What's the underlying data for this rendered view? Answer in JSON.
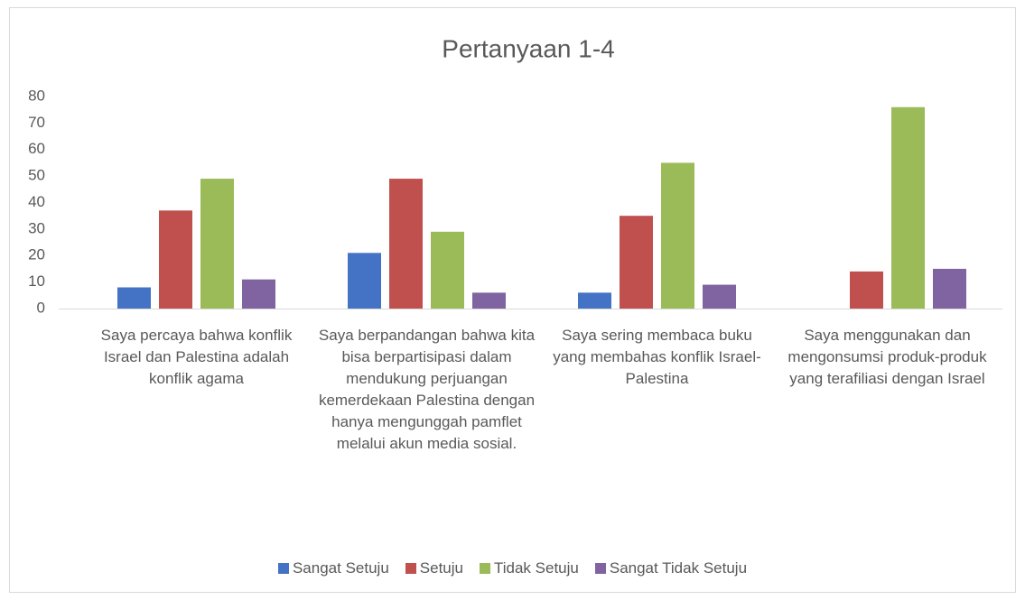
{
  "chart_data": {
    "type": "bar",
    "title": "Pertanyaan 1-4",
    "categories": [
      "Saya percaya bahwa konflik Israel dan Palestina adalah konflik agama",
      "Saya berpandangan bahwa kita bisa berpartisipasi dalam mendukung perjuangan kemerdekaan Palestina dengan hanya mengunggah pamflet melalui akun media sosial.",
      "Saya sering membaca buku yang membahas konflik Israel-Palestina",
      "Saya menggunakan dan mengonsumsi produk-produk yang terafiliasi dengan Israel"
    ],
    "series": [
      {
        "name": "Sangat Setuju",
        "color": "#4472c4",
        "values": [
          8,
          21,
          6,
          0
        ]
      },
      {
        "name": "Setuju",
        "color": "#c0504d",
        "values": [
          37,
          49,
          35,
          14
        ]
      },
      {
        "name": "Tidak Setuju",
        "color": "#9bbb59",
        "values": [
          49,
          29,
          55,
          76
        ]
      },
      {
        "name": "Sangat Tidak Setuju",
        "color": "#8064a2",
        "values": [
          11,
          6,
          9,
          15
        ]
      }
    ],
    "ylim": [
      0,
      80
    ],
    "yticks": [
      0,
      10,
      20,
      30,
      40,
      50,
      60,
      70,
      80
    ],
    "grid": false
  }
}
